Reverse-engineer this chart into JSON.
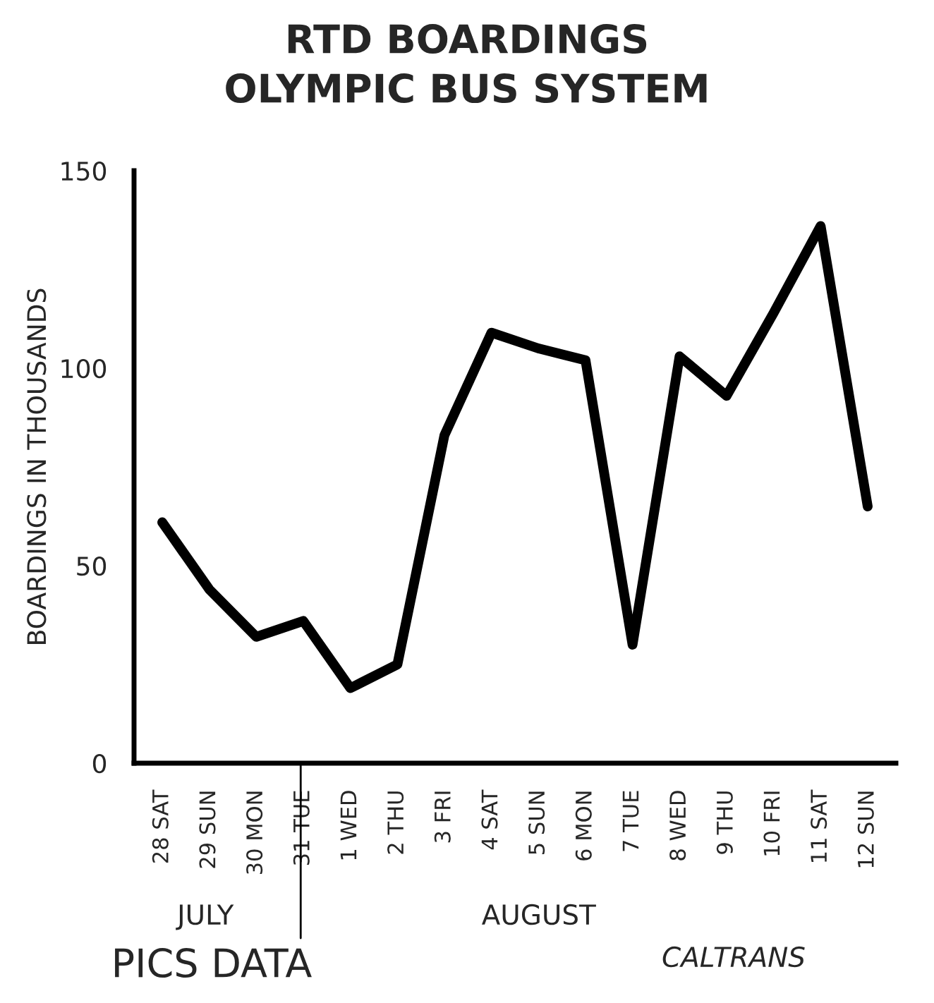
{
  "chart_data": {
    "type": "line",
    "title": "RTD BOARDINGS",
    "subtitle": "OLYMPIC BUS SYSTEM",
    "ylabel": "BOARDINGS IN THOUSANDS",
    "categories": [
      "28 SAT",
      "29 SUN",
      "30 MON",
      "31 TUE",
      "1 WED",
      "2 THU",
      "3 FRI",
      "4 SAT",
      "5 SUN",
      "6 MON",
      "7 TUE",
      "8 WED",
      "9 THU",
      "10 FRI",
      "11 SAT",
      "12 SUN"
    ],
    "series": [
      {
        "color": "#000000",
        "values": [
          61,
          44,
          32,
          36,
          19,
          25,
          83,
          109,
          105,
          102,
          30,
          103,
          93,
          114,
          136,
          65
        ]
      }
    ],
    "ylim": [
      0,
      150
    ],
    "yticks": [
      0,
      50,
      100,
      150
    ],
    "annotations": [
      "JULY",
      "AUGUST",
      "CALTRANS",
      "PICS DATA"
    ],
    "grid": false,
    "legend": false,
    "marker": "none",
    "line_style": "solid"
  }
}
